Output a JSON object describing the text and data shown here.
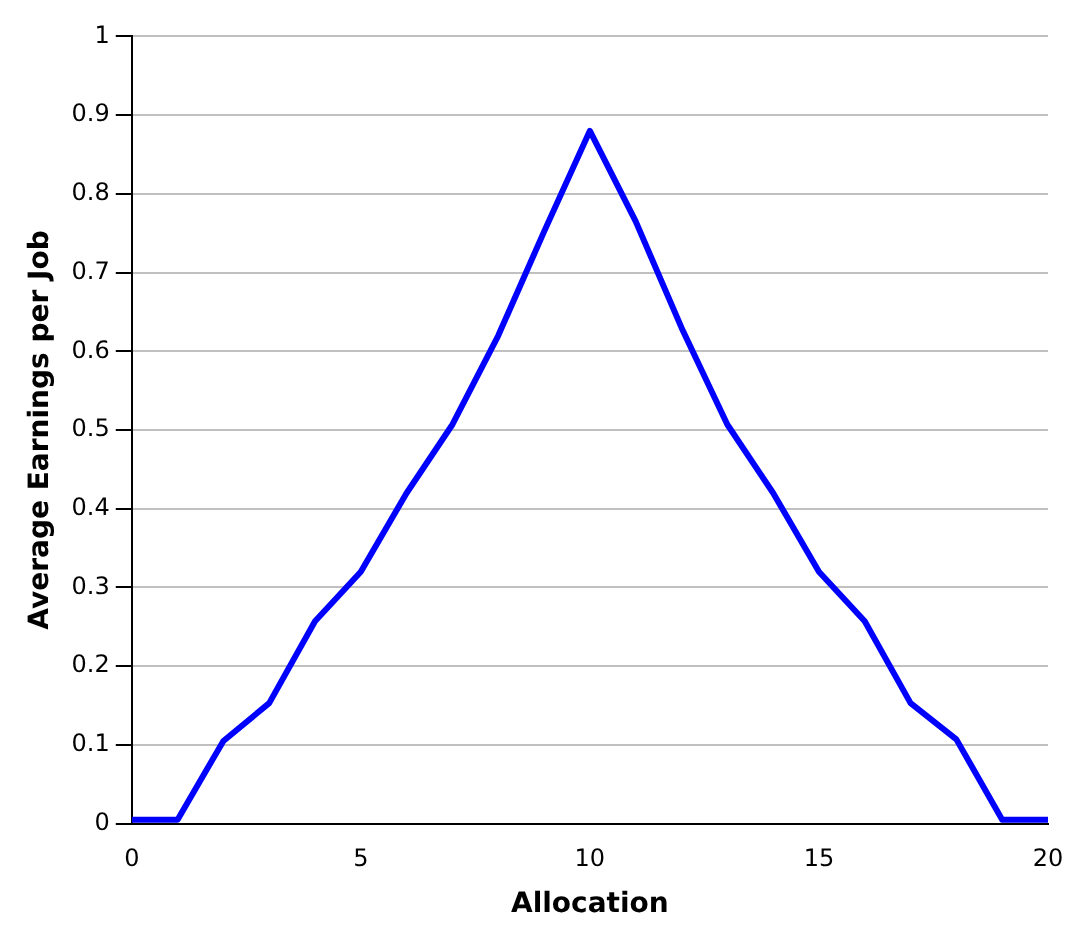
{
  "chart_data": {
    "type": "line",
    "xlabel": "Allocation",
    "ylabel": "Average Earnings per Job",
    "x": [
      0,
      1,
      2,
      3,
      4,
      5,
      6,
      7,
      8,
      9,
      10,
      11,
      12,
      13,
      14,
      15,
      16,
      17,
      18,
      19,
      20
    ],
    "series": [
      {
        "color": "#0000ff",
        "values": [
          0.005,
          0.005,
          0.105,
          0.153,
          0.257,
          0.32,
          0.42,
          0.507,
          0.62,
          0.752,
          0.88,
          0.765,
          0.63,
          0.507,
          0.42,
          0.32,
          0.257,
          0.153,
          0.107,
          0.005,
          0.005
        ]
      }
    ],
    "xlim": [
      0,
      20
    ],
    "xticks": [
      0,
      5,
      10,
      15,
      20
    ],
    "ylim": [
      0,
      1
    ],
    "yticks": [
      0,
      0.1,
      0.2,
      0.3,
      0.4,
      0.5,
      0.6,
      0.7,
      0.8,
      0.9,
      1
    ],
    "grid": "y",
    "legend": false,
    "marker": "none",
    "line_style": "solid"
  }
}
